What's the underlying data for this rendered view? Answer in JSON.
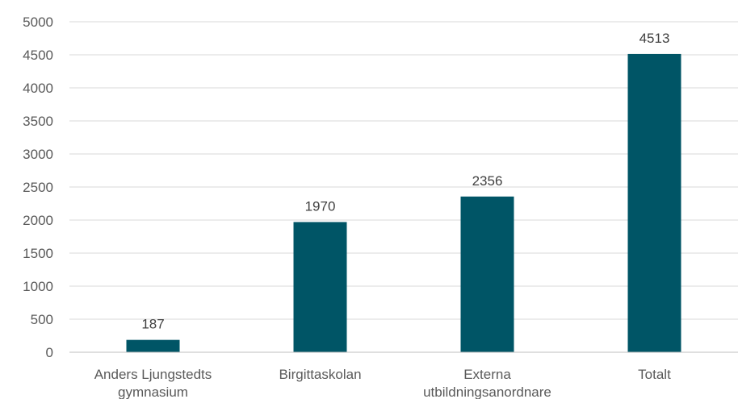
{
  "chart_data": {
    "type": "bar",
    "categories": [
      [
        "Anders Ljungstedts",
        "gymnasium"
      ],
      [
        "Birgittaskolan"
      ],
      [
        "Externa",
        "utbildningsanordnare"
      ],
      [
        "Totalt"
      ]
    ],
    "values": [
      187,
      1970,
      2356,
      4513
    ],
    "data_labels": [
      "187",
      "1970",
      "2356",
      "4513"
    ],
    "ylim": [
      0,
      5000
    ],
    "yticks": [
      "0",
      "500",
      "1000",
      "1500",
      "2000",
      "2500",
      "3000",
      "3500",
      "4000",
      "4500",
      "5000"
    ],
    "grid": true,
    "legend": "none",
    "colors": {
      "bar": "#005566"
    }
  }
}
